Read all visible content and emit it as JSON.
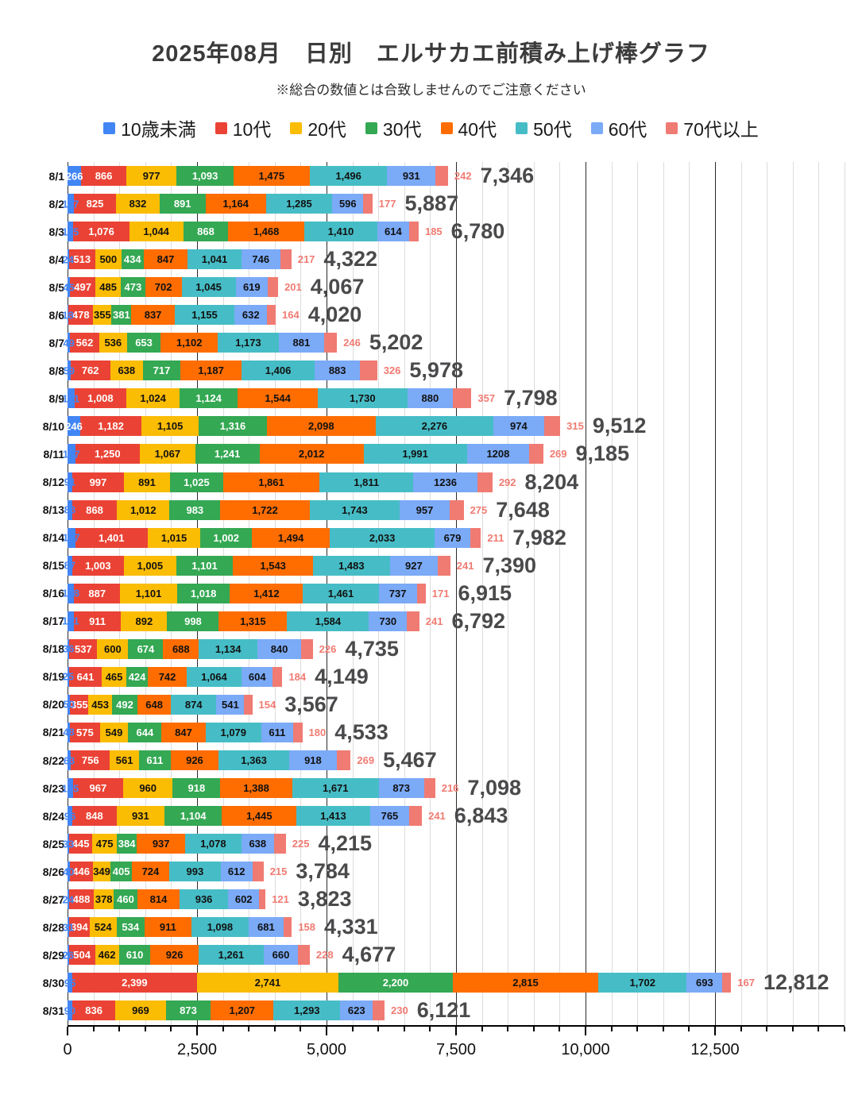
{
  "title": "2025年08月　日別　エルサカエ前積み上げ棒グラフ",
  "subtitle": "※総合の数値とは合致しませんのでご注意ください",
  "chart_data": {
    "type": "bar",
    "orientation": "horizontal-stacked",
    "axis": {
      "max": 15000,
      "minor_step": 500,
      "major_step": 2500,
      "major_tick_labels": [
        "0",
        "2,500",
        "5,000",
        "7,500",
        "10,000",
        "12,500"
      ],
      "major_tick_values": [
        0,
        2500,
        5000,
        7500,
        10000,
        12500
      ]
    },
    "series": [
      {
        "name": "10歳未満",
        "color": "#4285F4",
        "text_color": "#ffffff"
      },
      {
        "name": "10代",
        "color": "#EA4335",
        "text_color": "#ffffff"
      },
      {
        "name": "20代",
        "color": "#FBBC04",
        "text_color": "#111111"
      },
      {
        "name": "30代",
        "color": "#34A853",
        "text_color": "#ffffff"
      },
      {
        "name": "40代",
        "color": "#FF6D01",
        "text_color": "#111111"
      },
      {
        "name": "50代",
        "color": "#46BDC6",
        "text_color": "#111111"
      },
      {
        "name": "60代",
        "color": "#7BAAF7",
        "text_color": "#111111"
      },
      {
        "name": "70代以上",
        "color": "#F07B72",
        "text_color": "#F07B72"
      }
    ],
    "rows": [
      {
        "date": "8/1",
        "values": [
          266,
          866,
          977,
          1093,
          1475,
          1496,
          931,
          242
        ],
        "labels": [
          "266",
          "866",
          "977",
          "1,093",
          "1,475",
          "1,496",
          "931",
          "242"
        ],
        "total": 7346,
        "total_label": "7,346"
      },
      {
        "date": "8/2",
        "values": [
          117,
          825,
          832,
          891,
          1164,
          1285,
          596,
          177
        ],
        "labels": [
          "117",
          "825",
          "832",
          "891",
          "1,164",
          "1,285",
          "596",
          "177"
        ],
        "total": 5887,
        "total_label": "5,887"
      },
      {
        "date": "8/3",
        "values": [
          115,
          1076,
          1044,
          868,
          1468,
          1410,
          614,
          185
        ],
        "labels": [
          "115",
          "1,076",
          "1,044",
          "868",
          "1,468",
          "1,410",
          "614",
          "185"
        ],
        "total": 6780,
        "total_label": "6,780"
      },
      {
        "date": "8/4",
        "values": [
          24,
          513,
          500,
          434,
          847,
          1041,
          746,
          217
        ],
        "labels": [
          "24",
          "513",
          "500",
          "434",
          "847",
          "1,041",
          "746",
          "217"
        ],
        "total": 4322,
        "total_label": "4,322"
      },
      {
        "date": "8/5",
        "values": [
          45,
          497,
          485,
          473,
          702,
          1045,
          619,
          201
        ],
        "labels": [
          "45",
          "497",
          "485",
          "473",
          "702",
          "1,045",
          "619",
          "201"
        ],
        "total": 4067,
        "total_label": "4,067"
      },
      {
        "date": "8/6",
        "values": [
          18,
          478,
          355,
          381,
          837,
          1155,
          632,
          164
        ],
        "labels": [
          "18",
          "478",
          "355",
          "381",
          "837",
          "1,155",
          "632",
          "164"
        ],
        "total": 4020,
        "total_label": "4,020"
      },
      {
        "date": "8/7",
        "values": [
          49,
          562,
          536,
          653,
          1102,
          1173,
          881,
          246
        ],
        "labels": [
          "49",
          "562",
          "536",
          "653",
          "1,102",
          "1,173",
          "881",
          "246"
        ],
        "total": 5202,
        "total_label": "5,202"
      },
      {
        "date": "8/8",
        "values": [
          59,
          762,
          638,
          717,
          1187,
          1406,
          883,
          326
        ],
        "labels": [
          "59",
          "762",
          "638",
          "717",
          "1,187",
          "1,406",
          "883",
          "326"
        ],
        "total": 5978,
        "total_label": "5,978"
      },
      {
        "date": "8/9",
        "values": [
          131,
          1008,
          1024,
          1124,
          1544,
          1730,
          880,
          357
        ],
        "labels": [
          "131",
          "1,008",
          "1,024",
          "1,124",
          "1,544",
          "1,730",
          "880",
          "357"
        ],
        "total": 7798,
        "total_label": "7,798"
      },
      {
        "date": "8/10",
        "values": [
          246,
          1182,
          1105,
          1316,
          2098,
          2276,
          974,
          315
        ],
        "labels": [
          "246",
          "1,182",
          "1,105",
          "1,316",
          "2,098",
          "2,276",
          "974",
          "315"
        ],
        "total": 9512,
        "total_label": "9,512"
      },
      {
        "date": "8/11",
        "values": [
          147,
          1250,
          1067,
          1241,
          2012,
          1991,
          1208,
          269
        ],
        "labels": [
          "147",
          "1,250",
          "1,067",
          "1,241",
          "2,012",
          "1,991",
          "1208",
          "269"
        ],
        "total": 9185,
        "total_label": "9,185"
      },
      {
        "date": "8/12",
        "values": [
          91,
          997,
          891,
          1025,
          1861,
          1811,
          1236,
          292
        ],
        "labels": [
          "91",
          "997",
          "891",
          "1,025",
          "1,861",
          "1,811",
          "1236",
          "292"
        ],
        "total": 8204,
        "total_label": "8,204"
      },
      {
        "date": "8/13",
        "values": [
          88,
          868,
          1012,
          983,
          1722,
          1743,
          957,
          275
        ],
        "labels": [
          "88",
          "868",
          "1,012",
          "983",
          "1,722",
          "1,743",
          "957",
          "275"
        ],
        "total": 7648,
        "total_label": "7,648"
      },
      {
        "date": "8/14",
        "values": [
          147,
          1401,
          1015,
          1002,
          1494,
          2033,
          679,
          211
        ],
        "labels": [
          "147",
          "1,401",
          "1,015",
          "1,002",
          "1,494",
          "2,033",
          "679",
          "211"
        ],
        "total": 7982,
        "total_label": "7,982"
      },
      {
        "date": "8/15",
        "values": [
          87,
          1003,
          1005,
          1101,
          1543,
          1483,
          927,
          241
        ],
        "labels": [
          "87",
          "1,003",
          "1,005",
          "1,101",
          "1,543",
          "1,483",
          "927",
          "241"
        ],
        "total": 7390,
        "total_label": "7,390"
      },
      {
        "date": "8/16",
        "values": [
          128,
          887,
          1101,
          1018,
          1412,
          1461,
          737,
          171
        ],
        "labels": [
          "128",
          "887",
          "1,101",
          "1,018",
          "1,412",
          "1,461",
          "737",
          "171"
        ],
        "total": 6915,
        "total_label": "6,915"
      },
      {
        "date": "8/17",
        "values": [
          121,
          911,
          892,
          998,
          1315,
          1584,
          730,
          241
        ],
        "labels": [
          "121",
          "911",
          "892",
          "998",
          "1,315",
          "1,584",
          "730",
          "241"
        ],
        "total": 6792,
        "total_label": "6,792"
      },
      {
        "date": "8/18",
        "values": [
          36,
          537,
          600,
          674,
          688,
          1134,
          840,
          226
        ],
        "labels": [
          "36",
          "537",
          "600",
          "674",
          "688",
          "1,134",
          "840",
          "226"
        ],
        "total": 4735,
        "total_label": "4,735"
      },
      {
        "date": "8/19",
        "values": [
          25,
          641,
          465,
          424,
          742,
          1064,
          604,
          184
        ],
        "labels": [
          "25",
          "641",
          "465",
          "424",
          "742",
          "1,064",
          "604",
          "184"
        ],
        "total": 4149,
        "total_label": "4,149"
      },
      {
        "date": "8/20",
        "values": [
          50,
          355,
          453,
          492,
          648,
          874,
          541,
          154
        ],
        "labels": [
          "50",
          "355",
          "453",
          "492",
          "648",
          "874",
          "541",
          "154"
        ],
        "total": 3567,
        "total_label": "3,567"
      },
      {
        "date": "8/21",
        "values": [
          48,
          575,
          549,
          644,
          847,
          1079,
          611,
          180
        ],
        "labels": [
          "48",
          "575",
          "549",
          "644",
          "847",
          "1,079",
          "611",
          "180"
        ],
        "total": 4533,
        "total_label": "4,533"
      },
      {
        "date": "8/22",
        "values": [
          63,
          756,
          561,
          611,
          926,
          1363,
          918,
          269
        ],
        "labels": [
          "63",
          "756",
          "561",
          "611",
          "926",
          "1,363",
          "918",
          "269"
        ],
        "total": 5467,
        "total_label": "5,467"
      },
      {
        "date": "8/23",
        "values": [
          105,
          967,
          960,
          918,
          1388,
          1671,
          873,
          216
        ],
        "labels": [
          "105",
          "967",
          "960",
          "918",
          "1,388",
          "1,671",
          "873",
          "216"
        ],
        "total": 7098,
        "total_label": "7,098"
      },
      {
        "date": "8/24",
        "values": [
          96,
          848,
          931,
          1104,
          1445,
          1413,
          765,
          241
        ],
        "labels": [
          "96",
          "848",
          "931",
          "1,104",
          "1,445",
          "1,413",
          "765",
          "241"
        ],
        "total": 6843,
        "total_label": "6,843"
      },
      {
        "date": "8/25",
        "values": [
          33,
          445,
          475,
          384,
          937,
          1078,
          638,
          225
        ],
        "labels": [
          "33",
          "445",
          "475",
          "384",
          "937",
          "1,078",
          "638",
          "225"
        ],
        "total": 4215,
        "total_label": "4,215"
      },
      {
        "date": "8/26",
        "values": [
          40,
          446,
          349,
          405,
          724,
          993,
          612,
          215
        ],
        "labels": [
          "40",
          "446",
          "349",
          "405",
          "724",
          "993",
          "612",
          "215"
        ],
        "total": 3784,
        "total_label": "3,784"
      },
      {
        "date": "8/27",
        "values": [
          24,
          488,
          378,
          460,
          814,
          936,
          602,
          121
        ],
        "labels": [
          "24",
          "488",
          "378",
          "460",
          "814",
          "936",
          "602",
          "121"
        ],
        "total": 3823,
        "total_label": "3,823"
      },
      {
        "date": "8/28",
        "values": [
          31,
          394,
          524,
          534,
          911,
          1098,
          681,
          158
        ],
        "labels": [
          "31",
          "394",
          "524",
          "534",
          "911",
          "1,098",
          "681",
          "158"
        ],
        "total": 4331,
        "total_label": "4,331"
      },
      {
        "date": "8/29",
        "values": [
          26,
          504,
          462,
          610,
          926,
          1261,
          660,
          228
        ],
        "labels": [
          "26",
          "504",
          "462",
          "610",
          "926",
          "1,261",
          "660",
          "228"
        ],
        "total": 4677,
        "total_label": "4,677"
      },
      {
        "date": "8/30",
        "values": [
          95,
          2399,
          2741,
          2200,
          2815,
          1702,
          693,
          167
        ],
        "labels": [
          "95",
          "2,399",
          "2,741",
          "2,200",
          "2,815",
          "1,702",
          "693",
          "167"
        ],
        "total": 12812,
        "total_label": "12,812"
      },
      {
        "date": "8/31",
        "values": [
          90,
          836,
          969,
          873,
          1207,
          1293,
          623,
          230
        ],
        "labels": [
          "90",
          "836",
          "969",
          "873",
          "1,207",
          "1,293",
          "623",
          "230"
        ],
        "total": 6121,
        "total_label": "6,121"
      }
    ]
  }
}
